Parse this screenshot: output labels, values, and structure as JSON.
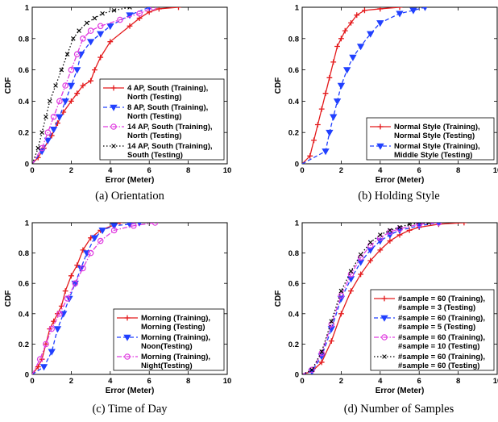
{
  "chart_data": [
    {
      "type": "line",
      "caption": "(a) Orientation",
      "xlabel": "Error (Meter)",
      "ylabel": "CDF",
      "xlim": [
        0,
        10
      ],
      "ylim": [
        0,
        1
      ],
      "xticks": [
        "0",
        "2",
        "4",
        "6",
        "8",
        "10"
      ],
      "yticks": [
        "0",
        "0.2",
        "0.4",
        "0.6",
        "0.8",
        "1"
      ],
      "legend_position": "bottom-right",
      "series": [
        {
          "name": [
            "4 AP, South (Training),",
            "North (Testing)"
          ],
          "color": "#e41a1c",
          "marker": "plus",
          "dash": "solid",
          "x": [
            0.0,
            0.3,
            0.6,
            1.0,
            1.3,
            1.6,
            2.0,
            2.3,
            2.6,
            3.0,
            3.2,
            3.5,
            4.0,
            5.0,
            5.5,
            6.0,
            6.5,
            7.5
          ],
          "y": [
            0.0,
            0.04,
            0.1,
            0.18,
            0.26,
            0.33,
            0.4,
            0.45,
            0.5,
            0.53,
            0.6,
            0.68,
            0.78,
            0.88,
            0.93,
            0.97,
            0.99,
            1.0
          ]
        },
        {
          "name": [
            "8 AP, South (Training),",
            "North (Testing)"
          ],
          "color": "#2140ff",
          "marker": "triangle",
          "dash": "dash",
          "x": [
            0.0,
            0.5,
            0.8,
            1.1,
            1.4,
            1.7,
            2.0,
            2.3,
            2.5,
            3.0,
            3.5,
            4.0,
            5.0,
            6.0
          ],
          "y": [
            0.0,
            0.08,
            0.15,
            0.22,
            0.3,
            0.4,
            0.5,
            0.6,
            0.7,
            0.78,
            0.83,
            0.88,
            0.95,
            1.0
          ]
        },
        {
          "name": [
            "14 AP, South (Training),",
            "North (Testing)"
          ],
          "color": "#e03ce0",
          "marker": "circle",
          "dash": "dashdot",
          "x": [
            0.0,
            0.5,
            0.8,
            1.1,
            1.4,
            1.7,
            2.0,
            2.3,
            2.6,
            3.0,
            3.5,
            4.5,
            5.5,
            6.2
          ],
          "y": [
            0.0,
            0.1,
            0.2,
            0.3,
            0.4,
            0.5,
            0.6,
            0.7,
            0.8,
            0.85,
            0.88,
            0.92,
            0.96,
            1.0
          ]
        },
        {
          "name": [
            "14 AP, South (Training),",
            "South (Testing)"
          ],
          "color": "#000000",
          "marker": "x",
          "dash": "dot",
          "x": [
            0.0,
            0.3,
            0.5,
            0.7,
            0.9,
            1.2,
            1.5,
            1.8,
            2.1,
            2.4,
            2.8,
            3.2,
            3.6,
            4.2,
            5.0
          ],
          "y": [
            0.0,
            0.1,
            0.2,
            0.3,
            0.4,
            0.5,
            0.6,
            0.7,
            0.8,
            0.85,
            0.9,
            0.93,
            0.96,
            0.98,
            1.0
          ]
        }
      ]
    },
    {
      "type": "line",
      "caption": "(b) Holding Style",
      "xlabel": "Error (Meter)",
      "ylabel": "CDF",
      "xlim": [
        0,
        10
      ],
      "ylim": [
        0,
        1
      ],
      "xticks": [
        "0",
        "2",
        "4",
        "6",
        "8",
        "10"
      ],
      "yticks": [
        "0",
        "0.2",
        "0.4",
        "0.6",
        "0.8",
        "1"
      ],
      "legend_position": "bottom-right",
      "series": [
        {
          "name": [
            "Normal Style (Training),",
            "Normal Style (Testing)"
          ],
          "color": "#e41a1c",
          "marker": "plus",
          "dash": "solid",
          "x": [
            0.0,
            0.4,
            0.6,
            0.8,
            1.0,
            1.2,
            1.4,
            1.6,
            1.8,
            2.0,
            2.2,
            2.5,
            2.8,
            3.2,
            4.0,
            5.0
          ],
          "y": [
            0.0,
            0.05,
            0.15,
            0.25,
            0.35,
            0.45,
            0.55,
            0.65,
            0.75,
            0.8,
            0.85,
            0.9,
            0.95,
            0.98,
            0.99,
            1.0
          ]
        },
        {
          "name": [
            "Normal Style (Training),",
            "Middle Style (Testing)"
          ],
          "color": "#2140ff",
          "marker": "triangle",
          "dash": "dash",
          "x": [
            0.0,
            1.2,
            1.4,
            1.6,
            1.8,
            2.0,
            2.3,
            2.6,
            3.0,
            3.5,
            4.0,
            5.0,
            5.7,
            6.3
          ],
          "y": [
            0.0,
            0.08,
            0.2,
            0.3,
            0.4,
            0.5,
            0.6,
            0.68,
            0.75,
            0.83,
            0.9,
            0.96,
            0.98,
            1.0
          ]
        }
      ]
    },
    {
      "type": "line",
      "caption": "(c) Time of Day",
      "xlabel": "Error (Meter)",
      "ylabel": "CDF",
      "xlim": [
        0,
        10
      ],
      "ylim": [
        0,
        1
      ],
      "xticks": [
        "0",
        "2",
        "4",
        "6",
        "8",
        "10"
      ],
      "yticks": [
        "0",
        "0.2",
        "0.4",
        "0.6",
        "0.8",
        "1"
      ],
      "legend_position": "bottom-right",
      "series": [
        {
          "name": [
            "Morning (Training),",
            "Morning (Testing)"
          ],
          "color": "#e41a1c",
          "marker": "plus",
          "dash": "solid",
          "x": [
            0.0,
            0.3,
            0.5,
            0.7,
            0.9,
            1.1,
            1.3,
            1.5,
            1.7,
            2.0,
            2.3,
            2.6,
            3.0,
            3.5,
            4.5
          ],
          "y": [
            0.0,
            0.05,
            0.1,
            0.2,
            0.3,
            0.35,
            0.4,
            0.45,
            0.55,
            0.65,
            0.72,
            0.82,
            0.9,
            0.95,
            1.0
          ]
        },
        {
          "name": [
            "Morning (Training),",
            "Noon(Testing)"
          ],
          "color": "#2140ff",
          "marker": "triangle",
          "dash": "dash",
          "x": [
            0.0,
            0.6,
            1.0,
            1.3,
            1.6,
            1.9,
            2.2,
            2.5,
            2.8,
            3.2,
            3.6,
            4.2,
            5.0,
            5.5
          ],
          "y": [
            0.0,
            0.05,
            0.15,
            0.3,
            0.4,
            0.5,
            0.6,
            0.7,
            0.8,
            0.9,
            0.95,
            0.98,
            0.99,
            1.0
          ]
        },
        {
          "name": [
            "Morning (Training),",
            "Night(Testing)"
          ],
          "color": "#e03ce0",
          "marker": "circle",
          "dash": "dashdot",
          "x": [
            0.0,
            0.4,
            0.7,
            1.0,
            1.4,
            1.8,
            2.2,
            2.6,
            3.0,
            3.5,
            4.2,
            5.2,
            6.3
          ],
          "y": [
            0.0,
            0.1,
            0.2,
            0.3,
            0.4,
            0.5,
            0.6,
            0.7,
            0.8,
            0.88,
            0.95,
            0.98,
            1.0
          ]
        }
      ]
    },
    {
      "type": "line",
      "caption": "(d) Number of Samples",
      "xlabel": "Error (Meter)",
      "ylabel": "CDF",
      "xlim": [
        0,
        10
      ],
      "ylim": [
        0,
        1
      ],
      "xticks": [
        "0",
        "2",
        "4",
        "6",
        "8",
        "10"
      ],
      "yticks": [
        "0",
        "0.2",
        "0.4",
        "0.6",
        "0.8",
        "1"
      ],
      "legend_position": "bottom-right",
      "series": [
        {
          "name": [
            "#sample = 60 (Training),",
            "#sample = 3 (Testing)"
          ],
          "color": "#e41a1c",
          "marker": "plus",
          "dash": "solid",
          "x": [
            0.0,
            0.5,
            1.0,
            1.5,
            2.0,
            2.5,
            3.0,
            3.5,
            4.0,
            4.5,
            5.0,
            5.5,
            6.0,
            7.0,
            8.3
          ],
          "y": [
            0.0,
            0.02,
            0.08,
            0.22,
            0.4,
            0.55,
            0.66,
            0.75,
            0.82,
            0.88,
            0.92,
            0.95,
            0.97,
            0.99,
            1.0
          ]
        },
        {
          "name": [
            "#sample = 60 (Training),",
            "#sample = 5 (Testing)"
          ],
          "color": "#2140ff",
          "marker": "triangle",
          "dash": "dash",
          "x": [
            0.0,
            0.5,
            1.0,
            1.5,
            2.0,
            2.5,
            3.0,
            3.5,
            4.0,
            4.5,
            5.0,
            6.0,
            7.0
          ],
          "y": [
            0.0,
            0.02,
            0.12,
            0.3,
            0.5,
            0.63,
            0.74,
            0.82,
            0.88,
            0.92,
            0.95,
            0.98,
            1.0
          ]
        },
        {
          "name": [
            "#sample = 60 (Training),",
            "#sample = 10 (Testing)"
          ],
          "color": "#e03ce0",
          "marker": "circle",
          "dash": "dashdot",
          "x": [
            0.0,
            0.5,
            1.0,
            1.5,
            2.0,
            2.5,
            3.0,
            3.5,
            4.0,
            4.5,
            5.0,
            6.0,
            7.0
          ],
          "y": [
            0.0,
            0.03,
            0.14,
            0.33,
            0.52,
            0.66,
            0.77,
            0.85,
            0.9,
            0.94,
            0.96,
            0.99,
            1.0
          ]
        },
        {
          "name": [
            "#sample = 60 (Training),",
            "#sample = 60 (Testing)"
          ],
          "color": "#000000",
          "marker": "x",
          "dash": "dot",
          "x": [
            0.0,
            0.5,
            1.0,
            1.5,
            2.0,
            2.5,
            3.0,
            3.5,
            4.0,
            4.5,
            5.0,
            5.5,
            6.5
          ],
          "y": [
            0.0,
            0.03,
            0.15,
            0.35,
            0.55,
            0.68,
            0.79,
            0.87,
            0.92,
            0.95,
            0.97,
            0.99,
            1.0
          ]
        }
      ]
    }
  ]
}
